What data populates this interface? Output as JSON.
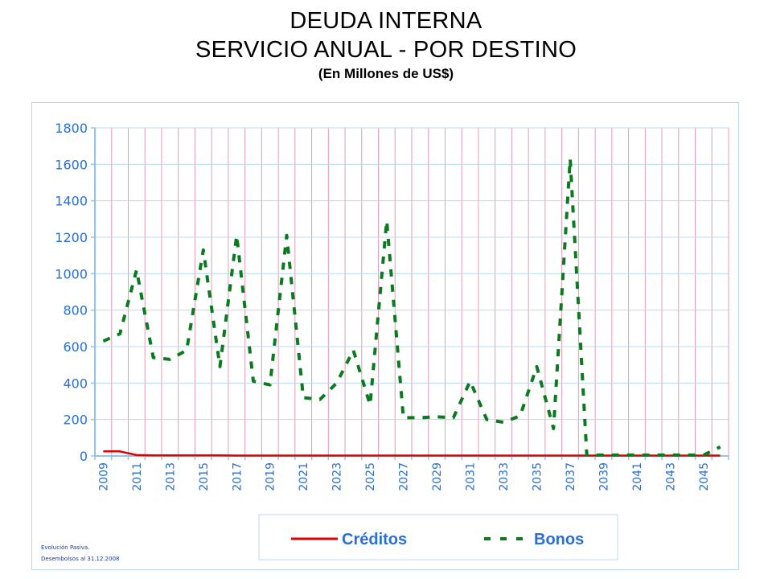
{
  "title_line1": "DEUDA INTERNA",
  "title_line2": "SERVICIO ANUAL - POR DESTINO",
  "subtitle": "(En Millones de US$)",
  "footnote_line1": "Evolución Pasiva.",
  "footnote_line2": "Desembolsos al 31.12.2008",
  "colors": {
    "axis_text": "#2a6fd6",
    "grid_horizontal": "#b8d8f0",
    "grid_vertical": "#e79ab8",
    "axis": "#8ec4ee",
    "creditos": "#e00000",
    "bonos": "#0a7a1e",
    "legend_text": "#2a6fd6"
  },
  "chart_data": {
    "type": "line",
    "x": [
      2009,
      2010,
      2011,
      2012,
      2013,
      2014,
      2015,
      2016,
      2017,
      2018,
      2019,
      2020,
      2021,
      2022,
      2023,
      2024,
      2025,
      2026,
      2027,
      2028,
      2029,
      2030,
      2031,
      2032,
      2033,
      2034,
      2035,
      2036,
      2037,
      2038,
      2039,
      2040,
      2041,
      2042,
      2043,
      2044,
      2045,
      2046
    ],
    "x_tick_labels": [
      "2009",
      "2011",
      "2013",
      "2015",
      "2017",
      "2019",
      "2021",
      "2023",
      "2025",
      "2027",
      "2029",
      "2031",
      "2033",
      "2035",
      "2037",
      "2039",
      "2041",
      "2043",
      "2045"
    ],
    "ylim": [
      0,
      1800
    ],
    "y_ticks": [
      0,
      200,
      400,
      600,
      800,
      1000,
      1200,
      1400,
      1600,
      1800
    ],
    "grid": true,
    "legend_position": "bottom",
    "series": [
      {
        "name": "Créditos",
        "style": "solid",
        "values": [
          25,
          25,
          5,
          3,
          3,
          3,
          3,
          3,
          2,
          2,
          2,
          2,
          2,
          2,
          2,
          2,
          2,
          2,
          2,
          2,
          2,
          2,
          2,
          2,
          2,
          2,
          2,
          2,
          2,
          2,
          2,
          2,
          2,
          2,
          2,
          2,
          2,
          2
        ]
      },
      {
        "name": "Bonos",
        "style": "dashed",
        "values": [
          630,
          670,
          1020,
          540,
          530,
          580,
          1130,
          490,
          1210,
          410,
          390,
          1210,
          320,
          310,
          400,
          580,
          280,
          1290,
          210,
          210,
          215,
          210,
          410,
          200,
          185,
          220,
          490,
          150,
          1630,
          5,
          5,
          5,
          5,
          5,
          5,
          5,
          5,
          50
        ]
      }
    ]
  }
}
